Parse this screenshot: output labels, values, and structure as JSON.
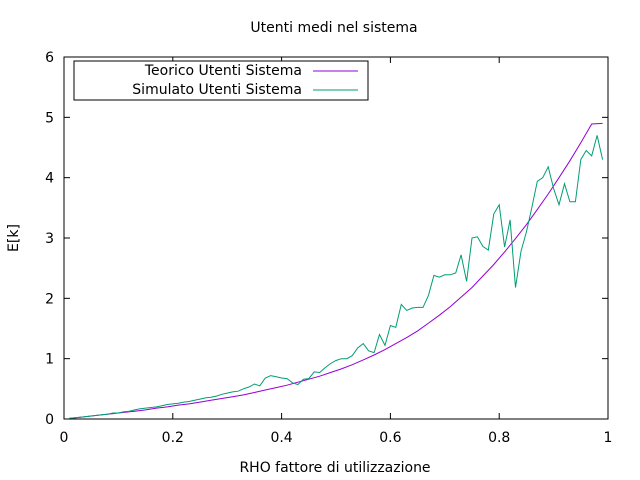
{
  "chart_data": {
    "type": "line",
    "title": "Utenti medi nel sistema",
    "xlabel": "RHO fattore di utilizzazione",
    "ylabel": "E[k]",
    "xlim": [
      0,
      1
    ],
    "ylim": [
      0,
      6
    ],
    "xticks": [
      0,
      0.2,
      0.4,
      0.6,
      0.8,
      1
    ],
    "xtick_labels": [
      "0",
      "0.2",
      "0.4",
      "0.6",
      "0.8",
      "1"
    ],
    "yticks": [
      0,
      1,
      2,
      3,
      4,
      5,
      6
    ],
    "ytick_labels": [
      "0",
      "1",
      "2",
      "3",
      "4",
      "5",
      "6"
    ],
    "grid": false,
    "legend_position": "top-left",
    "series": [
      {
        "name": "Teorico Utenti Sistema",
        "color": "#9400d3",
        "x": [
          0.01,
          0.03,
          0.05,
          0.07,
          0.09,
          0.11,
          0.13,
          0.15,
          0.17,
          0.19,
          0.21,
          0.23,
          0.25,
          0.27,
          0.29,
          0.31,
          0.33,
          0.35,
          0.37,
          0.39,
          0.41,
          0.43,
          0.45,
          0.47,
          0.49,
          0.51,
          0.53,
          0.55,
          0.57,
          0.59,
          0.61,
          0.63,
          0.65,
          0.67,
          0.69,
          0.71,
          0.73,
          0.75,
          0.77,
          0.79,
          0.81,
          0.83,
          0.85,
          0.87,
          0.89,
          0.91,
          0.93,
          0.95,
          0.97,
          0.99
        ],
        "values": [
          0.01,
          0.03,
          0.05,
          0.07,
          0.09,
          0.11,
          0.13,
          0.15,
          0.18,
          0.2,
          0.23,
          0.25,
          0.28,
          0.31,
          0.34,
          0.37,
          0.4,
          0.44,
          0.48,
          0.52,
          0.56,
          0.61,
          0.66,
          0.71,
          0.77,
          0.83,
          0.9,
          0.98,
          1.06,
          1.15,
          1.25,
          1.35,
          1.46,
          1.59,
          1.72,
          1.86,
          2.02,
          2.18,
          2.37,
          2.56,
          2.77,
          2.99,
          3.22,
          3.47,
          3.73,
          4.0,
          4.28,
          4.58,
          4.89,
          4.9
        ]
      },
      {
        "name": "Simulato Utenti Sistema",
        "color": "#009e73",
        "x": [
          0.01,
          0.02,
          0.03,
          0.04,
          0.05,
          0.06,
          0.07,
          0.08,
          0.09,
          0.1,
          0.11,
          0.12,
          0.13,
          0.14,
          0.15,
          0.16,
          0.17,
          0.18,
          0.19,
          0.2,
          0.21,
          0.22,
          0.23,
          0.24,
          0.25,
          0.26,
          0.27,
          0.28,
          0.29,
          0.3,
          0.31,
          0.32,
          0.33,
          0.34,
          0.35,
          0.36,
          0.37,
          0.38,
          0.39,
          0.4,
          0.41,
          0.42,
          0.43,
          0.44,
          0.45,
          0.46,
          0.47,
          0.48,
          0.49,
          0.5,
          0.51,
          0.52,
          0.53,
          0.54,
          0.55,
          0.56,
          0.57,
          0.58,
          0.59,
          0.6,
          0.61,
          0.62,
          0.63,
          0.64,
          0.65,
          0.66,
          0.67,
          0.68,
          0.69,
          0.7,
          0.71,
          0.72,
          0.73,
          0.74,
          0.75,
          0.76,
          0.77,
          0.78,
          0.79,
          0.8,
          0.81,
          0.82,
          0.83,
          0.84,
          0.85,
          0.86,
          0.87,
          0.88,
          0.89,
          0.9,
          0.91,
          0.92,
          0.93,
          0.94,
          0.95,
          0.96,
          0.97,
          0.98,
          0.99
        ],
        "values": [
          0.01,
          0.02,
          0.03,
          0.04,
          0.05,
          0.06,
          0.07,
          0.08,
          0.1,
          0.1,
          0.12,
          0.13,
          0.15,
          0.17,
          0.18,
          0.19,
          0.2,
          0.22,
          0.24,
          0.25,
          0.26,
          0.28,
          0.29,
          0.31,
          0.33,
          0.35,
          0.36,
          0.38,
          0.41,
          0.43,
          0.45,
          0.46,
          0.5,
          0.53,
          0.58,
          0.55,
          0.68,
          0.72,
          0.7,
          0.68,
          0.67,
          0.6,
          0.57,
          0.66,
          0.67,
          0.78,
          0.77,
          0.85,
          0.92,
          0.97,
          1.0,
          1.0,
          1.05,
          1.18,
          1.25,
          1.13,
          1.1,
          1.4,
          1.22,
          1.55,
          1.52,
          1.9,
          1.8,
          1.84,
          1.85,
          1.85,
          2.05,
          2.38,
          2.35,
          2.39,
          2.39,
          2.42,
          2.72,
          2.28,
          3.0,
          3.02,
          2.86,
          2.8,
          3.4,
          3.55,
          2.85,
          3.3,
          2.18,
          2.78,
          3.1,
          3.5,
          3.94,
          4.0,
          4.18,
          3.82,
          3.55,
          3.9,
          3.6,
          3.6,
          4.3,
          4.45,
          4.36,
          4.7,
          4.3
        ]
      }
    ]
  }
}
